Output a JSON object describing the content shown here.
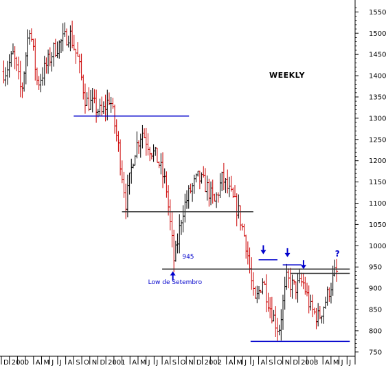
{
  "chart_data": {
    "type": "ohlc",
    "title": "WEEKLY",
    "price_axis": {
      "side": "right",
      "ylim": [
        740,
        1570
      ],
      "ticks": [
        750,
        800,
        850,
        900,
        950,
        1000,
        1050,
        1100,
        1150,
        1200,
        1250,
        1300,
        1350,
        1400,
        1450,
        1500,
        1550
      ]
    },
    "time_axis": {
      "start": "1999-12",
      "end": "2003-07",
      "ticks": [
        {
          "label": "D",
          "date": "1999-12"
        },
        {
          "label": "2000",
          "date": "2000-01"
        },
        {
          "label": "A",
          "date": "2000-04"
        },
        {
          "label": "M",
          "date": "2000-05"
        },
        {
          "label": "J",
          "date": "2000-06"
        },
        {
          "label": "J",
          "date": "2000-07"
        },
        {
          "label": "A",
          "date": "2000-08"
        },
        {
          "label": "S",
          "date": "2000-09"
        },
        {
          "label": "O",
          "date": "2000-10"
        },
        {
          "label": "N",
          "date": "2000-11"
        },
        {
          "label": "D",
          "date": "2000-12"
        },
        {
          "label": "2001",
          "date": "2001-01"
        },
        {
          "label": "A",
          "date": "2001-04"
        },
        {
          "label": "M",
          "date": "2001-05"
        },
        {
          "label": "J",
          "date": "2001-06"
        },
        {
          "label": "J",
          "date": "2001-07"
        },
        {
          "label": "A",
          "date": "2001-08"
        },
        {
          "label": "S",
          "date": "2001-09"
        },
        {
          "label": "O",
          "date": "2001-10"
        },
        {
          "label": "N",
          "date": "2001-11"
        },
        {
          "label": "D",
          "date": "2001-12"
        },
        {
          "label": "2002",
          "date": "2002-01"
        },
        {
          "label": "A",
          "date": "2002-04"
        },
        {
          "label": "M",
          "date": "2002-05"
        },
        {
          "label": "J",
          "date": "2002-06"
        },
        {
          "label": "J",
          "date": "2002-07"
        },
        {
          "label": "A",
          "date": "2002-08"
        },
        {
          "label": "S",
          "date": "2002-09"
        },
        {
          "label": "O",
          "date": "2002-10"
        },
        {
          "label": "N",
          "date": "2002-11"
        },
        {
          "label": "D",
          "date": "2002-12"
        },
        {
          "label": "2003",
          "date": "2003-01"
        },
        {
          "label": "A",
          "date": "2003-04"
        },
        {
          "label": "M",
          "date": "2003-05"
        },
        {
          "label": "J",
          "date": "2003-06"
        },
        {
          "label": "J",
          "date": "2003-07"
        }
      ]
    },
    "key_points": [
      {
        "date": "1999-12",
        "price": 1410
      },
      {
        "date": "2000-01",
        "price": 1450
      },
      {
        "date": "2000-02",
        "price": 1360
      },
      {
        "date": "2000-03",
        "price": 1520
      },
      {
        "date": "2000-04",
        "price": 1380
      },
      {
        "date": "2000-06",
        "price": 1460
      },
      {
        "date": "2000-08",
        "price": 1500
      },
      {
        "date": "2000-09",
        "price": 1440
      },
      {
        "date": "2000-10",
        "price": 1340
      },
      {
        "date": "2000-11",
        "price": 1330
      },
      {
        "date": "2000-12",
        "price": 1310
      },
      {
        "date": "2001-01",
        "price": 1350
      },
      {
        "date": "2001-02",
        "price": 1240
      },
      {
        "date": "2001-03",
        "price": 1100
      },
      {
        "date": "2001-04",
        "price": 1220
      },
      {
        "date": "2001-05",
        "price": 1270
      },
      {
        "date": "2001-06",
        "price": 1230
      },
      {
        "date": "2001-07",
        "price": 1200
      },
      {
        "date": "2001-08",
        "price": 1140
      },
      {
        "date": "2001-09",
        "price": 960
      },
      {
        "date": "2001-10",
        "price": 1080
      },
      {
        "date": "2001-11",
        "price": 1130
      },
      {
        "date": "2001-12",
        "price": 1160
      },
      {
        "date": "2002-01",
        "price": 1140
      },
      {
        "date": "2002-02",
        "price": 1100
      },
      {
        "date": "2002-03",
        "price": 1160
      },
      {
        "date": "2002-04",
        "price": 1120
      },
      {
        "date": "2002-05",
        "price": 1080
      },
      {
        "date": "2002-06",
        "price": 1000
      },
      {
        "date": "2002-07",
        "price": 860
      },
      {
        "date": "2002-08",
        "price": 920
      },
      {
        "date": "2002-09",
        "price": 850
      },
      {
        "date": "2002-10",
        "price": 800
      },
      {
        "date": "2002-11",
        "price": 920
      },
      {
        "date": "2002-12",
        "price": 900
      },
      {
        "date": "2003-01",
        "price": 915
      },
      {
        "date": "2003-02",
        "price": 850
      },
      {
        "date": "2003-03",
        "price": 830
      },
      {
        "date": "2003-04",
        "price": 880
      },
      {
        "date": "2003-05",
        "price": 935
      }
    ],
    "lines": [
      {
        "name": "resistance-1300",
        "color": "#0000cc",
        "price": 1305,
        "from": "2000-09",
        "to": "2001-11"
      },
      {
        "name": "support-1080",
        "color": "#333333",
        "price": 1080,
        "from": "2001-03",
        "to": "2002-07"
      },
      {
        "name": "support-945",
        "color": "#333333",
        "price": 945,
        "from": "2001-08",
        "to": "2003-07"
      },
      {
        "name": "short-967",
        "color": "#0000cc",
        "price": 967,
        "from": "2002-08",
        "to": "2002-10"
      },
      {
        "name": "short-955",
        "color": "#0000cc",
        "price": 955,
        "from": "2002-11",
        "to": "2003-01"
      },
      {
        "name": "resistance-935",
        "color": "#333333",
        "price": 935,
        "from": "2002-12",
        "to": "2003-07"
      },
      {
        "name": "support-775",
        "color": "#0000cc",
        "price": 775,
        "from": "2002-07",
        "to": "2003-07"
      }
    ],
    "annotations": [
      {
        "text": "945",
        "date": "2001-10",
        "price": 970,
        "color": "#0000cc"
      },
      {
        "text": "Low de Setembro",
        "date": "2001-09",
        "price": 910,
        "color": "#0000cc"
      },
      {
        "text": "?",
        "date": "2003-05",
        "price": 975,
        "color": "#0000cc"
      }
    ],
    "arrows": [
      {
        "direction": "up",
        "date": "2001-09",
        "price": 935,
        "color": "#0000cc"
      },
      {
        "direction": "down",
        "date": "2002-08",
        "price": 985,
        "color": "#0000cc"
      },
      {
        "direction": "down",
        "date": "2002-11",
        "price": 978,
        "color": "#0000cc"
      },
      {
        "direction": "down",
        "date": "2003-01",
        "price": 950,
        "color": "#0000cc"
      }
    ],
    "colors": {
      "up": "#000000",
      "down": "#cc0000",
      "axis": "#000000"
    },
    "grid": false,
    "legend": "none"
  }
}
